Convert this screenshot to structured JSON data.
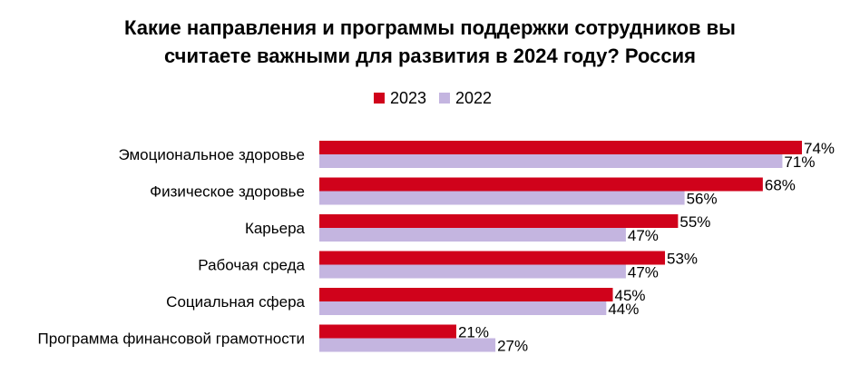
{
  "chart_data": {
    "type": "bar",
    "orientation": "horizontal",
    "title_lines": [
      "Какие направления и программы поддержки сотрудников вы",
      "считаете важными для развития в 2024 году?  Россия"
    ],
    "categories": [
      "Эмоциональное здоровье",
      "Физическое здоровье",
      "Карьера",
      "Рабочая среда",
      "Социальная сфера",
      "Программа финансовой грамотности"
    ],
    "series": [
      {
        "name": "2023",
        "color": "#d0021b",
        "values": [
          74,
          68,
          55,
          53,
          45,
          21
        ],
        "labels": [
          "74%",
          "68%",
          "55%",
          "53%",
          "45%",
          "21%"
        ]
      },
      {
        "name": "2022",
        "color": "#c4b5e0",
        "values": [
          71,
          56,
          47,
          47,
          44,
          27
        ],
        "labels": [
          "71%",
          "56%",
          "47%",
          "47%",
          "44%",
          "27%"
        ]
      }
    ],
    "xlim": [
      0,
      74
    ],
    "legend_position": "top-center",
    "grid": false
  }
}
